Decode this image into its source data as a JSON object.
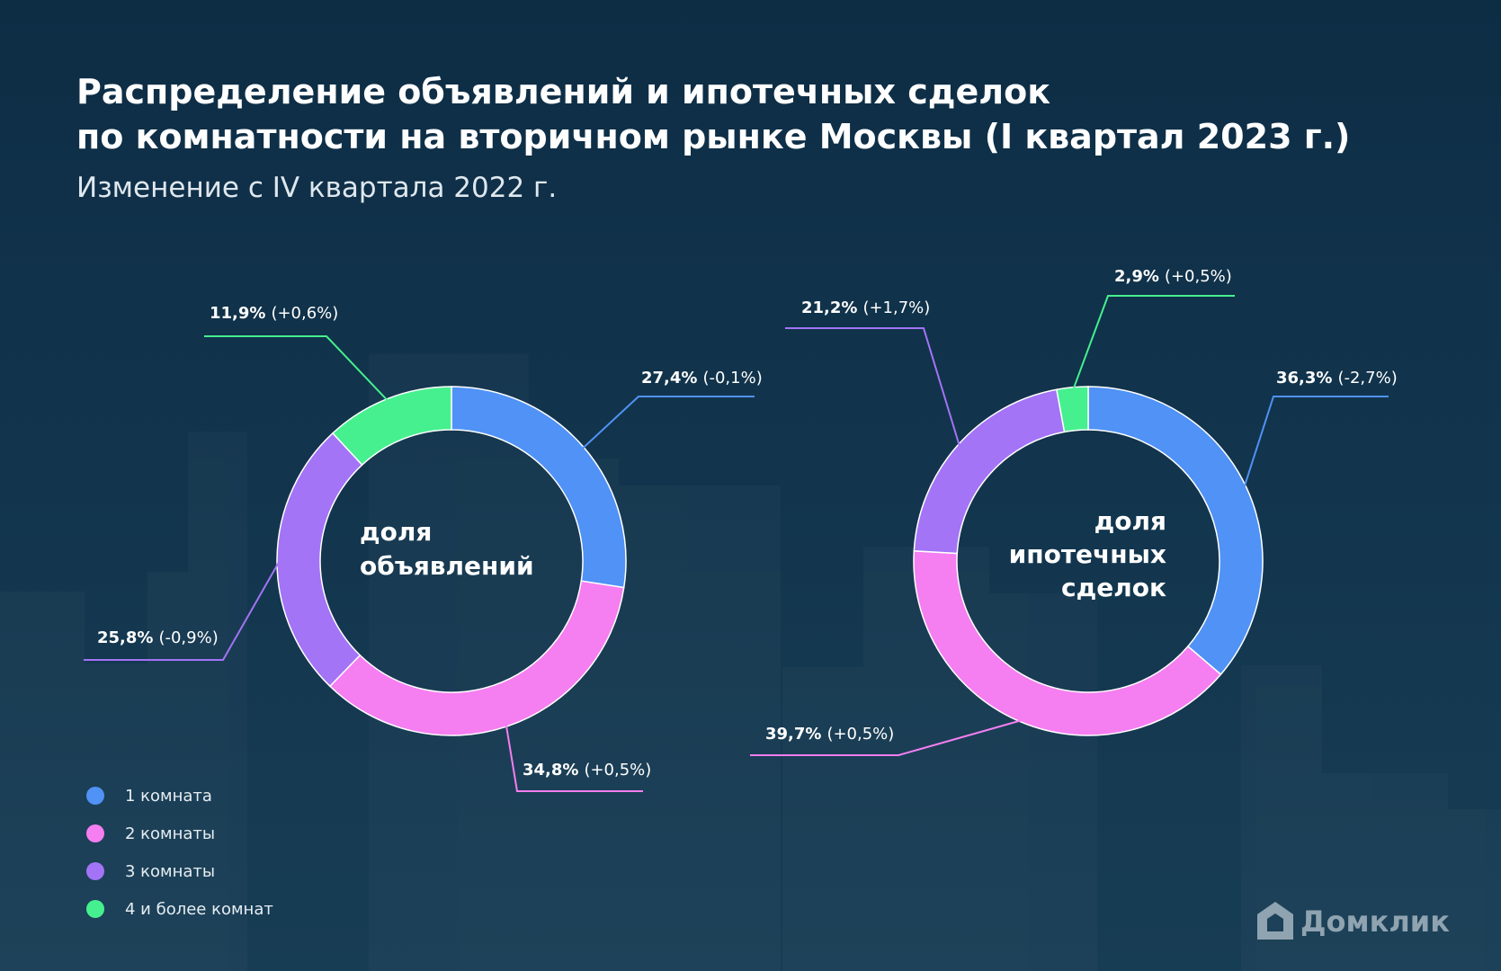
{
  "header": {
    "title": [
      "Распределение объявлений и ипотечных сделок",
      "по комнатности на вторичном рынке Москвы (I квартал 2023 г.)"
    ],
    "subtitle": "Изменение с IV квартала 2022 г."
  },
  "chart_data": [
    {
      "type": "pie",
      "center_label": [
        "доля",
        "объявлений"
      ],
      "values": [
        27.4,
        34.8,
        25.8,
        11.9
      ],
      "value_labels": [
        "27,4%",
        "34,8%",
        "25,8%",
        "11,9%"
      ],
      "change_labels": [
        "(-0,1%)",
        "(+0,5%)",
        "(-0,9%)",
        "(+0,6%)"
      ],
      "colors": [
        "#5092f5",
        "#f57ef0",
        "#a374f5",
        "#46f08f"
      ]
    },
    {
      "type": "pie",
      "center_label": [
        "доля",
        "ипотечных",
        "сделок"
      ],
      "values": [
        36.3,
        39.7,
        21.2,
        2.9
      ],
      "value_labels": [
        "36,3%",
        "39,7%",
        "21,2%",
        "2,9%"
      ],
      "change_labels": [
        "(-2,7%)",
        "(+0,5%)",
        "(+1,7%)",
        "(+0,5%)"
      ],
      "colors": [
        "#5092f5",
        "#f57ef0",
        "#a374f5",
        "#46f08f"
      ]
    }
  ],
  "legend": {
    "items": [
      "1 комната",
      "2 комнаты",
      "3 комнаты",
      "4 и более комнат"
    ],
    "colors": [
      "#5092f5",
      "#f57ef0",
      "#a374f5",
      "#46f08f"
    ]
  },
  "logo": "Домклик"
}
